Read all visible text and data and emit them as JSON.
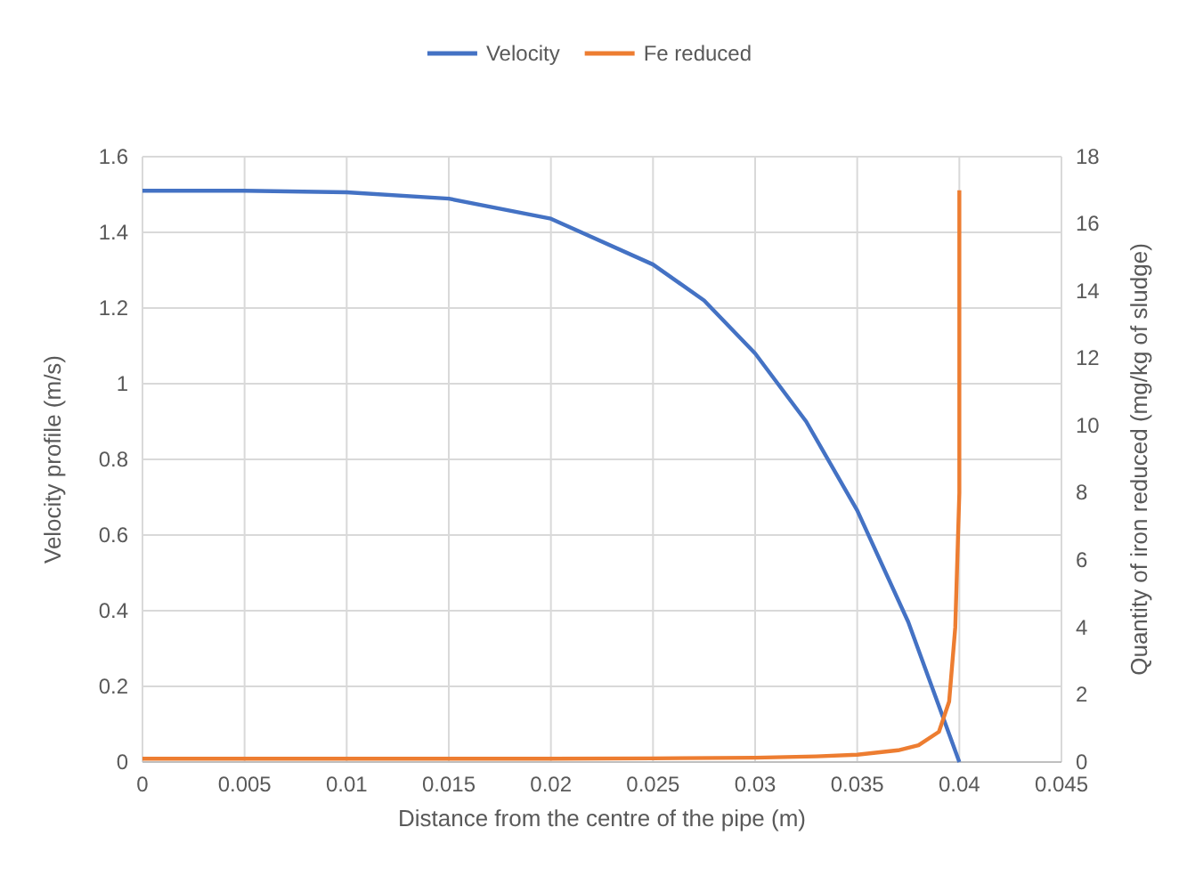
{
  "chart_data": {
    "type": "line",
    "xlabel": "Distance from the centre of the pipe (m)",
    "ylabel": "Velocity profile (m/s)",
    "y2label": "Quantity of iron reduced (mg/kg of sludge)",
    "xlim": [
      0,
      0.045
    ],
    "xticks": [
      0,
      0.005,
      0.01,
      0.015,
      0.02,
      0.025,
      0.03,
      0.035,
      0.04,
      0.045
    ],
    "ylim": [
      0,
      1.6
    ],
    "yticks": [
      0,
      0.2,
      0.4,
      0.6,
      0.8,
      1,
      1.2,
      1.4,
      1.6
    ],
    "y2lim": [
      0,
      18
    ],
    "y2ticks": [
      0,
      2,
      4,
      6,
      8,
      10,
      12,
      14,
      16,
      18
    ],
    "grid": true,
    "legend": "top",
    "marker": "none",
    "line_style": "solid",
    "series": [
      {
        "name": "Velocity",
        "color": "#4472c4",
        "x": [
          0,
          0.005,
          0.01,
          0.015,
          0.02,
          0.025,
          0.0275,
          0.03,
          0.0325,
          0.035,
          0.0375,
          0.04
        ],
        "values": [
          1.51,
          1.51,
          1.506,
          1.489,
          1.436,
          1.315,
          1.22,
          1.08,
          0.9,
          0.665,
          0.37,
          0
        ]
      },
      {
        "name": "Fe reduced",
        "color": "#ed7d31",
        "axis": "y2",
        "x": [
          0,
          0.01,
          0.02,
          0.025,
          0.03,
          0.033,
          0.035,
          0.037,
          0.038,
          0.039,
          0.0395,
          0.0398,
          0.04,
          0.04
        ],
        "values": [
          0.1,
          0.1,
          0.1,
          0.11,
          0.13,
          0.17,
          0.22,
          0.35,
          0.5,
          0.9,
          1.8,
          4,
          8,
          17
        ]
      }
    ]
  }
}
